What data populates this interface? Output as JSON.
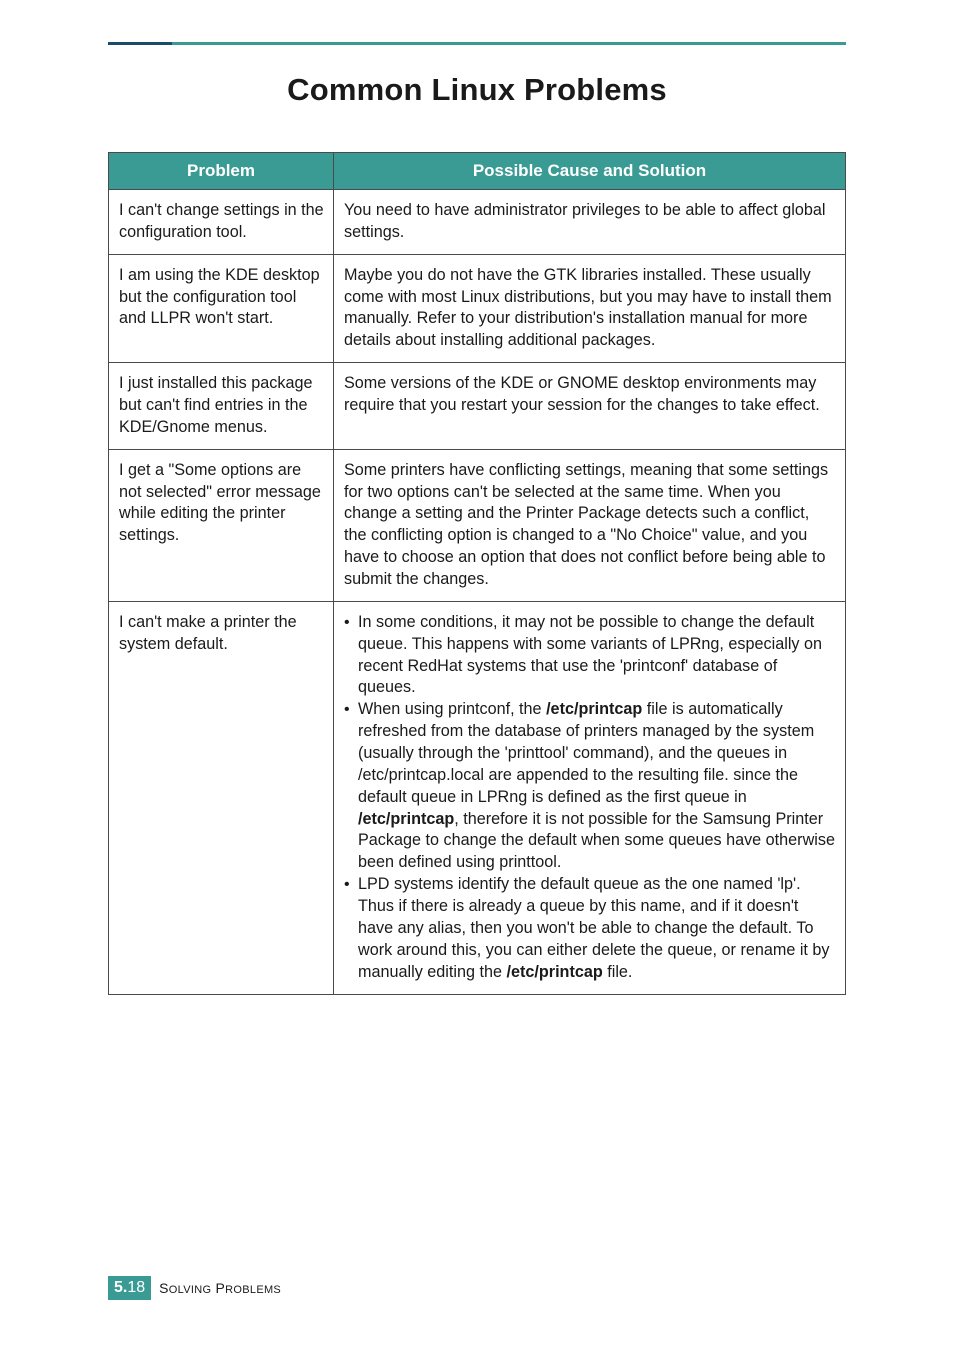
{
  "title": "Common Linux Problems",
  "table": {
    "headers": [
      "Problem",
      "Possible Cause and Solution"
    ],
    "rows": [
      {
        "problem": "I can't change settings in the configuration tool.",
        "solution_plain": "You need to have administrator privileges to be able to affect global settings."
      },
      {
        "problem": "I am using the KDE desktop but the configuration tool and LLPR won't start.",
        "solution_plain": "Maybe you do not have the GTK libraries installed. These usually come with most Linux distributions, but you may have to install them manually. Refer to your distribution's installation manual for more details about installing additional packages."
      },
      {
        "problem": "I just installed this package but can't find entries in the KDE/Gnome menus.",
        "solution_plain": "Some versions of the KDE or GNOME desktop environments may require that you restart your session for the changes to take effect."
      },
      {
        "problem": "I get a \"Some options are not selected\" error message while editing the printer settings.",
        "solution_plain": "Some printers have conflicting settings, meaning that some settings for two options can't be selected at the same time. When you change a setting and the Printer Package detects such a conflict, the conflicting option is changed to a \"No Choice\" value, and you have to choose an option that does not conflict before being able to submit the changes."
      },
      {
        "problem": "I can't make a printer the system default.",
        "solution_bullets": [
          {
            "lead": "In some conditions, it may not be possible to change the default queue. This happens with some variants of LPRng, especially on recent RedHat systems that use the 'printconf' database of queues."
          },
          {
            "pre": " When using printconf, the ",
            "bold1": "/etc/printcap",
            "mid1": " file is automatically refreshed from the database of printers managed by the system (usually through the 'printtool' command), and the queues in /etc/printcap.local are appended to the resulting file. since the default queue in LPRng is defined as the first queue in ",
            "bold2": "/etc/printcap",
            "mid2": ", therefore it is not possible for the Samsung Printer Package to change the default when some queues have otherwise been defined using printtool."
          },
          {
            "pre": "LPD systems identify the default queue as the one named 'lp'. Thus if there is already a queue by this name, and if it doesn't have any alias, then you won't be able to change the default. To work around this, you can either delete the queue, or rename it by manually editing the ",
            "bold1": "/etc/printcap",
            "mid1": " file."
          }
        ]
      }
    ]
  },
  "footer": {
    "chapter": "5.",
    "page": "18",
    "label_caps": "S",
    "label_rest1": "OLVING",
    "label_caps2": " P",
    "label_rest2": "ROBLEMS"
  },
  "colors": {
    "teal": "#3a9b94",
    "dark_accent": "#1a4d6b",
    "border": "#4a4a4a",
    "text": "#1a1a1a",
    "white": "#ffffff"
  }
}
